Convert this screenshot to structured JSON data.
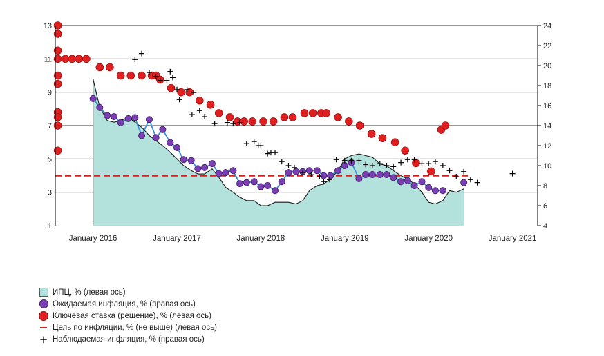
{
  "chart_data": {
    "type": "line",
    "left_axis": {
      "min": 1,
      "max": 13,
      "ticks": [
        "1",
        "3",
        "5",
        "7",
        "9",
        "11",
        "13"
      ]
    },
    "right_axis": {
      "min": 4,
      "max": 24,
      "ticks": [
        "4",
        "6",
        "8",
        "10",
        "12",
        "14",
        "16",
        "18",
        "20",
        "22",
        "24"
      ]
    },
    "x_tick_labels": [
      "January 2016",
      "January 2017",
      "January 2018",
      "January 2019",
      "January 2020",
      "January 2021"
    ],
    "x_tick_values": [
      2016,
      2017,
      2018,
      2019,
      2020,
      2021
    ],
    "x_range": [
      2015.55,
      2021.3
    ],
    "target_line": {
      "axis": "left",
      "value": 4.0,
      "from": 2015.55,
      "to": 2020.5
    },
    "series": [
      {
        "name": "ИПЦ, % (левая ось)",
        "kind": "area",
        "axis": "left",
        "color": "#b3e2dc",
        "x": [
          2016.0,
          2016.08,
          2016.17,
          2016.25,
          2016.33,
          2016.42,
          2016.5,
          2016.58,
          2016.67,
          2016.75,
          2016.83,
          2016.92,
          2017.0,
          2017.08,
          2017.17,
          2017.25,
          2017.33,
          2017.42,
          2017.5,
          2017.58,
          2017.67,
          2017.75,
          2017.83,
          2017.92,
          2018.0,
          2018.08,
          2018.17,
          2018.25,
          2018.33,
          2018.42,
          2018.5,
          2018.58,
          2018.67,
          2018.75,
          2018.83,
          2018.92,
          2019.0,
          2019.08,
          2019.17,
          2019.25,
          2019.33,
          2019.42,
          2019.5,
          2019.58,
          2019.67,
          2019.75,
          2019.83,
          2019.92,
          2020.0,
          2020.08,
          2020.17,
          2020.25,
          2020.33,
          2020.42
        ],
        "values": [
          9.8,
          8.1,
          7.3,
          7.2,
          7.3,
          7.5,
          7.2,
          6.9,
          6.4,
          6.1,
          5.8,
          5.4,
          5.0,
          4.6,
          4.3,
          4.1,
          4.1,
          4.4,
          3.9,
          3.3,
          3.0,
          2.7,
          2.5,
          2.5,
          2.2,
          2.2,
          2.4,
          2.4,
          2.4,
          2.3,
          2.5,
          3.1,
          3.4,
          3.5,
          3.8,
          4.3,
          5.0,
          5.2,
          5.3,
          5.2,
          5.1,
          4.7,
          4.6,
          4.3,
          4.0,
          3.8,
          3.5,
          3.0,
          2.4,
          2.3,
          2.5,
          3.1,
          3.0,
          3.2
        ]
      },
      {
        "name": "Ожидаемая инфляция, % (правая ось)",
        "kind": "line-marker",
        "axis": "right",
        "color": "#7b3fb4",
        "x": [
          2016.0,
          2016.08,
          2016.17,
          2016.25,
          2016.33,
          2016.42,
          2016.5,
          2016.58,
          2016.67,
          2016.75,
          2016.83,
          2016.92,
          2017.0,
          2017.08,
          2017.17,
          2017.25,
          2017.33,
          2017.42,
          2017.5,
          2017.58,
          2017.67,
          2017.75,
          2017.83,
          2017.92,
          2018.0,
          2018.08,
          2018.17,
          2018.25,
          2018.33,
          2018.42,
          2018.5,
          2018.58,
          2018.67,
          2018.75,
          2018.83,
          2018.92,
          2019.0,
          2019.08,
          2019.17,
          2019.25,
          2019.33,
          2019.42,
          2019.5,
          2019.58,
          2019.67,
          2019.75,
          2019.83,
          2019.92,
          2020.0,
          2020.08,
          2020.17,
          2020.42
        ],
        "values": [
          16.7,
          15.8,
          15.0,
          14.9,
          14.3,
          14.7,
          14.8,
          13.0,
          14.6,
          12.8,
          13.6,
          12.3,
          11.8,
          10.6,
          10.5,
          9.7,
          9.8,
          10.2,
          9.2,
          9.3,
          9.5,
          8.2,
          8.3,
          8.4,
          7.9,
          8.0,
          7.5,
          8.4,
          9.3,
          9.4,
          9.4,
          9.5,
          9.5,
          9.0,
          9.0,
          9.5,
          10.0,
          10.3,
          8.7,
          9.1,
          9.1,
          9.1,
          9.1,
          8.8,
          8.4,
          8.5,
          8.0,
          8.4,
          7.8,
          7.5,
          7.5,
          8.3
        ]
      },
      {
        "name": "Ключевая ставка (решение), % (левая ось)",
        "kind": "marker",
        "axis": "left",
        "color": "#e02020",
        "x": [
          2015.58,
          2015.58,
          2015.58,
          2015.58,
          2015.58,
          2015.58,
          2015.58,
          2015.58,
          2015.58,
          2015.58,
          2015.67,
          2015.75,
          2015.83,
          2015.92,
          2016.08,
          2016.2,
          2016.33,
          2016.45,
          2016.58,
          2016.7,
          2016.75,
          2016.8,
          2016.93,
          2017.05,
          2017.15,
          2017.27,
          2017.4,
          2017.5,
          2017.63,
          2017.72,
          2017.8,
          2017.9,
          2018.03,
          2018.15,
          2018.28,
          2018.38,
          2018.52,
          2018.62,
          2018.72,
          2018.78,
          2018.92,
          2019.05,
          2019.18,
          2019.32,
          2019.45,
          2019.6,
          2019.72,
          2019.85,
          2020.03,
          2020.15,
          2020.2
        ],
        "values": [
          13.0,
          12.5,
          11.5,
          11.0,
          10.0,
          9.5,
          7.8,
          7.5,
          7.0,
          5.5,
          11.0,
          11.0,
          11.0,
          11.0,
          10.5,
          10.5,
          10.0,
          10.0,
          10.0,
          10.0,
          10.0,
          9.75,
          9.25,
          9.0,
          9.0,
          8.5,
          8.25,
          7.75,
          7.5,
          7.25,
          7.25,
          7.25,
          7.25,
          7.25,
          7.5,
          7.5,
          7.75,
          7.75,
          7.75,
          7.75,
          7.5,
          7.25,
          7.0,
          6.5,
          6.25,
          6.0,
          5.5,
          4.75,
          4.25,
          6.75,
          7.0
        ]
      },
      {
        "name": "Наблюдаемая инфляция, % (правая ось)",
        "kind": "plus",
        "axis": "right",
        "color": "#000000",
        "x": [
          2016.5,
          2016.58,
          2016.67,
          2016.75,
          2016.8,
          2016.88,
          2016.92,
          2016.95,
          2017.0,
          2017.03,
          2017.12,
          2017.18,
          2017.2,
          2017.27,
          2017.33,
          2017.45,
          2017.6,
          2017.67,
          2017.75,
          2017.83,
          2017.92,
          2017.97,
          2018.0,
          2018.08,
          2018.12,
          2018.17,
          2018.25,
          2018.33,
          2018.4,
          2018.5,
          2018.6,
          2018.7,
          2018.75,
          2018.82,
          2018.9,
          2019.0,
          2019.08,
          2019.17,
          2019.25,
          2019.33,
          2019.42,
          2019.5,
          2019.58,
          2019.67,
          2019.75,
          2019.83,
          2019.92,
          2020.0,
          2020.08,
          2020.17,
          2020.25,
          2020.33,
          2020.42,
          2020.5,
          2020.58,
          2021.0
        ],
        "values": [
          20.6,
          21.2,
          19.3,
          18.9,
          18.5,
          18.5,
          19.4,
          18.8,
          17.6,
          16.6,
          17.6,
          15.1,
          17.3,
          15.5,
          14.9,
          14.2,
          14.3,
          14.2,
          14.3,
          12.2,
          12.4,
          12.0,
          12.0,
          11.2,
          11.3,
          11.3,
          10.4,
          10.0,
          9.8,
          9.3,
          9.1,
          8.9,
          8.4,
          8.6,
          10.6,
          10.5,
          10.5,
          10.5,
          10.1,
          10.0,
          10.2,
          10.0,
          9.9,
          10.3,
          10.6,
          10.6,
          10.2,
          10.2,
          10.4,
          10.0,
          9.5,
          8.9,
          9.4,
          8.6,
          8.3,
          9.2
        ]
      }
    ]
  },
  "legend": {
    "items": [
      {
        "label": "ИПЦ, % (левая ось)",
        "symbol": "area-icon"
      },
      {
        "label": "Ожидаемая инфляция, % (правая ось)",
        "symbol": "circle-purple-icon"
      },
      {
        "label": "Ключевая ставка (решение), % (левая ось)",
        "symbol": "circle-red-icon"
      },
      {
        "label": "Цель по инфляции, % (не выше) (левая ось)",
        "symbol": "dash-red-icon"
      },
      {
        "label": "Наблюдаемая инфляция, % (правая ось)",
        "symbol": "plus-icon"
      }
    ]
  },
  "colors": {
    "area": "#b3e2dc",
    "area_line": "#1a1a1a",
    "expected": "#7b3fb4",
    "expected_line": "#3a8ed8",
    "rate": "#e02020",
    "target": "#d02020",
    "observed": "#000000"
  }
}
